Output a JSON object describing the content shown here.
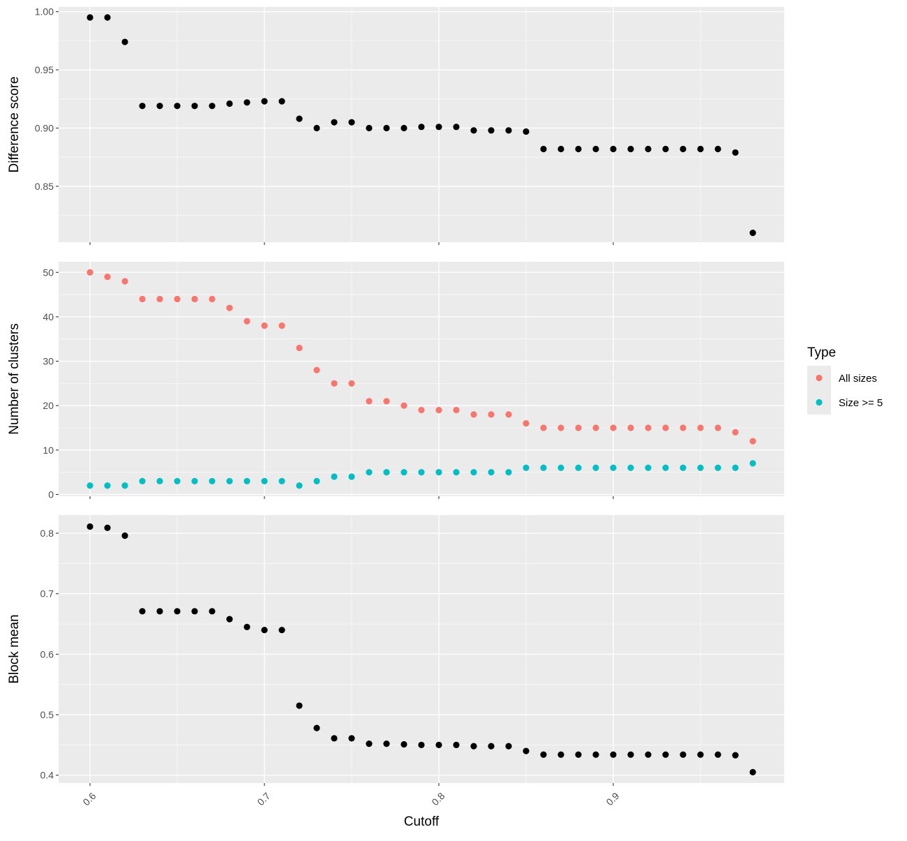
{
  "chart_data": {
    "type": "scatter",
    "x": [
      0.6,
      0.61,
      0.62,
      0.63,
      0.64,
      0.65,
      0.66,
      0.67,
      0.68,
      0.69,
      0.7,
      0.71,
      0.72,
      0.73,
      0.74,
      0.75,
      0.76,
      0.77,
      0.78,
      0.79,
      0.8,
      0.81,
      0.82,
      0.83,
      0.84,
      0.85,
      0.86,
      0.87,
      0.88,
      0.89,
      0.9,
      0.91,
      0.92,
      0.93,
      0.94,
      0.95,
      0.96,
      0.97,
      0.98
    ],
    "xlabel": "Cutoff",
    "xlim": [
      0.582,
      0.998
    ],
    "xticks": [
      0.6,
      0.7,
      0.8,
      0.9
    ],
    "xtick_labels": [
      "0.6",
      "0.7",
      "0.8",
      "0.9"
    ],
    "panels": [
      {
        "ylabel": "Difference score",
        "ylim": [
          0.802,
          1.004
        ],
        "yticks": [
          0.85,
          0.9,
          0.95,
          1.0
        ],
        "ytick_labels": [
          "0.85",
          "0.90",
          "0.95",
          "1.00"
        ],
        "series": [
          {
            "color": "#000000",
            "values": [
              0.995,
              0.995,
              0.974,
              0.919,
              0.919,
              0.919,
              0.919,
              0.919,
              0.921,
              0.922,
              0.923,
              0.923,
              0.908,
              0.9,
              0.905,
              0.905,
              0.9,
              0.9,
              0.9,
              0.901,
              0.901,
              0.901,
              0.898,
              0.898,
              0.898,
              0.897,
              0.882,
              0.882,
              0.882,
              0.882,
              0.882,
              0.882,
              0.882,
              0.882,
              0.882,
              0.882,
              0.882,
              0.879,
              0.81
            ]
          }
        ]
      },
      {
        "ylabel": "Number of clusters",
        "ylim": [
          -0.4,
          52.4
        ],
        "yticks": [
          0,
          10,
          20,
          30,
          40,
          50
        ],
        "ytick_labels": [
          "0",
          "10",
          "20",
          "30",
          "40",
          "50"
        ],
        "series": [
          {
            "name": "All sizes",
            "color": "#F8766D",
            "values": [
              50,
              49,
              48,
              44,
              44,
              44,
              44,
              44,
              42,
              39,
              38,
              38,
              33,
              28,
              25,
              25,
              21,
              21,
              20,
              19,
              19,
              19,
              18,
              18,
              18,
              16,
              15,
              15,
              15,
              15,
              15,
              15,
              15,
              15,
              15,
              15,
              15,
              14,
              12
            ]
          },
          {
            "name": "Size >= 5",
            "color": "#00BFC4",
            "values": [
              2,
              2,
              2,
              3,
              3,
              3,
              3,
              3,
              3,
              3,
              3,
              3,
              2,
              3,
              4,
              4,
              5,
              5,
              5,
              5,
              5,
              5,
              5,
              5,
              5,
              6,
              6,
              6,
              6,
              6,
              6,
              6,
              6,
              6,
              6,
              6,
              6,
              6,
              7
            ]
          }
        ]
      },
      {
        "ylabel": "Block mean",
        "ylim": [
          0.387,
          0.83
        ],
        "yticks": [
          0.4,
          0.5,
          0.6,
          0.7,
          0.8
        ],
        "ytick_labels": [
          "0.4",
          "0.5",
          "0.6",
          "0.7",
          "0.8"
        ],
        "series": [
          {
            "color": "#000000",
            "values": [
              0.811,
              0.809,
              0.796,
              0.671,
              0.671,
              0.671,
              0.671,
              0.671,
              0.658,
              0.645,
              0.64,
              0.64,
              0.515,
              0.478,
              0.461,
              0.461,
              0.452,
              0.452,
              0.451,
              0.45,
              0.45,
              0.45,
              0.448,
              0.448,
              0.448,
              0.44,
              0.434,
              0.434,
              0.434,
              0.434,
              0.434,
              0.434,
              0.434,
              0.434,
              0.434,
              0.434,
              0.434,
              0.433,
              0.405
            ]
          }
        ]
      }
    ],
    "legend": {
      "title": "Type",
      "position": "right",
      "entries": [
        {
          "label": "All sizes",
          "color": "#F8766D"
        },
        {
          "label": "Size >= 5",
          "color": "#00BFC4"
        }
      ]
    },
    "grid": true,
    "panel_background": "#EBEBEB",
    "grid_color": "#FFFFFF"
  }
}
